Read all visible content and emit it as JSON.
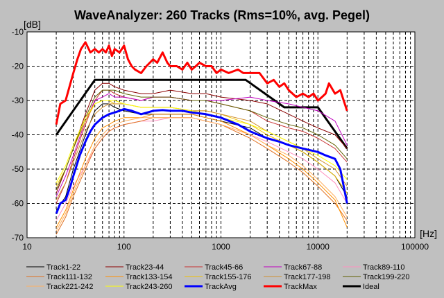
{
  "chart_data": {
    "type": "line",
    "title": "WaveAnalyzer: 260 Tracks (Rms=10%, avg. Pegel)",
    "ylabel": "[dB]",
    "xlabel": "[Hz]",
    "xscale": "log",
    "xlim": [
      10,
      100000
    ],
    "ylim": [
      -70,
      -10
    ],
    "xticks": [
      {
        "value": 10,
        "label": "10"
      },
      {
        "value": 100,
        "label": "100"
      },
      {
        "value": 1000,
        "label": "1000"
      },
      {
        "value": 10000,
        "label": "10000"
      },
      {
        "value": 100000,
        "label": "100000"
      }
    ],
    "yticks": [
      {
        "value": -10,
        "label": "-10"
      },
      {
        "value": -20,
        "label": "-20"
      },
      {
        "value": -30,
        "label": "-30"
      },
      {
        "value": -40,
        "label": "-40"
      },
      {
        "value": -50,
        "label": "-50"
      },
      {
        "value": -60,
        "label": "-60"
      },
      {
        "value": -70,
        "label": "-70"
      }
    ],
    "grid": true,
    "legend_position": "bottom",
    "series": [
      {
        "name": "Track1-22",
        "color": "#000000",
        "x": [
          20,
          25,
          30,
          40,
          50,
          60,
          70,
          80,
          100,
          150,
          200,
          300,
          500,
          700,
          1000,
          2000,
          3000,
          5000,
          7000,
          10000,
          15000,
          20000
        ],
        "y": [
          -62,
          -58,
          -50,
          -40,
          -33,
          -31,
          -31,
          -32,
          -33,
          -34,
          -34,
          -34,
          -34,
          -35,
          -36,
          -38,
          -41,
          -43,
          -45,
          -48,
          -52,
          -58
        ]
      },
      {
        "name": "Track23-44",
        "color": "#8b0000",
        "x": [
          20,
          25,
          30,
          40,
          50,
          60,
          70,
          80,
          100,
          150,
          200,
          300,
          500,
          700,
          1000,
          2000,
          3000,
          5000,
          7000,
          10000,
          15000,
          20000
        ],
        "y": [
          -57,
          -50,
          -44,
          -34,
          -27,
          -25,
          -25,
          -26,
          -27,
          -28,
          -28,
          -27,
          -28,
          -28,
          -29,
          -30,
          -31,
          -34,
          -36,
          -38,
          -40,
          -44
        ]
      },
      {
        "name": "Track45-66",
        "color": "#c83232",
        "x": [
          20,
          25,
          30,
          40,
          50,
          60,
          70,
          80,
          100,
          150,
          200,
          300,
          500,
          700,
          1000,
          2000,
          3000,
          5000,
          7000,
          10000,
          15000,
          20000
        ],
        "y": [
          -60,
          -54,
          -47,
          -37,
          -30,
          -27,
          -27,
          -28,
          -29,
          -30,
          -29,
          -29,
          -30,
          -30,
          -31,
          -33,
          -36,
          -38,
          -39,
          -41,
          -44,
          -48
        ]
      },
      {
        "name": "Track67-88",
        "color": "#c000c0",
        "x": [
          20,
          25,
          30,
          40,
          50,
          60,
          70,
          80,
          100,
          150,
          200,
          300,
          500,
          700,
          1000,
          2000,
          3000,
          5000,
          7000,
          10000,
          15000,
          20000
        ],
        "y": [
          -58,
          -52,
          -46,
          -36,
          -30,
          -29,
          -28,
          -29,
          -29,
          -30,
          -29,
          -29,
          -30,
          -30,
          -30,
          -29,
          -30,
          -31,
          -32,
          -33,
          -36,
          -43
        ]
      },
      {
        "name": "Track89-110",
        "color": "#ff90c0",
        "x": [
          20,
          25,
          30,
          40,
          50,
          60,
          70,
          80,
          100,
          150,
          200,
          300,
          500,
          700,
          1000,
          2000,
          3000,
          5000,
          7000,
          10000,
          15000,
          20000
        ],
        "y": [
          -65,
          -60,
          -55,
          -49,
          -44,
          -41,
          -39,
          -38,
          -37,
          -36,
          -36,
          -35,
          -35,
          -36,
          -37,
          -40,
          -42,
          -45,
          -47,
          -50,
          -54,
          -60
        ]
      },
      {
        "name": "Track111-132",
        "color": "#e07020",
        "x": [
          20,
          25,
          30,
          40,
          50,
          60,
          70,
          80,
          100,
          150,
          200,
          300,
          500,
          700,
          1000,
          2000,
          3000,
          5000,
          7000,
          10000,
          15000,
          20000
        ],
        "y": [
          -69,
          -64,
          -58,
          -50,
          -44,
          -41,
          -39,
          -38,
          -37,
          -36,
          -35,
          -35,
          -35,
          -36,
          -37,
          -41,
          -44,
          -48,
          -51,
          -55,
          -60,
          -65
        ]
      },
      {
        "name": "Track133-154",
        "color": "#ff9000",
        "x": [
          20,
          25,
          30,
          40,
          50,
          60,
          70,
          80,
          100,
          150,
          200,
          300,
          500,
          700,
          1000,
          2000,
          3000,
          5000,
          7000,
          10000,
          15000,
          20000
        ],
        "y": [
          -67,
          -62,
          -56,
          -47,
          -41,
          -38,
          -37,
          -36,
          -35,
          -35,
          -34,
          -34,
          -34,
          -35,
          -36,
          -40,
          -43,
          -47,
          -50,
          -54,
          -59,
          -67
        ]
      },
      {
        "name": "Track155-176",
        "color": "#f0c000",
        "x": [
          20,
          25,
          30,
          40,
          50,
          60,
          70,
          80,
          100,
          150,
          200,
          300,
          500,
          700,
          1000,
          2000,
          3000,
          5000,
          7000,
          10000,
          15000,
          20000
        ],
        "y": [
          -55,
          -50,
          -44,
          -36,
          -31,
          -30,
          -30,
          -31,
          -31,
          -32,
          -32,
          -32,
          -33,
          -33,
          -34,
          -37,
          -40,
          -43,
          -45,
          -48,
          -52,
          -57
        ]
      },
      {
        "name": "Track177-198",
        "color": "#d09030",
        "x": [
          20,
          25,
          30,
          40,
          50,
          60,
          70,
          80,
          100,
          150,
          200,
          300,
          500,
          700,
          1000,
          2000,
          3000,
          5000,
          7000,
          10000,
          15000,
          20000
        ],
        "y": [
          -59,
          -54,
          -48,
          -39,
          -34,
          -32,
          -31,
          -31,
          -31,
          -32,
          -32,
          -32,
          -33,
          -33,
          -34,
          -36,
          -39,
          -42,
          -44,
          -47,
          -50,
          -55
        ]
      },
      {
        "name": "Track199-220",
        "color": "#606000",
        "x": [
          20,
          25,
          30,
          40,
          50,
          60,
          70,
          80,
          100,
          150,
          200,
          300,
          500,
          700,
          1000,
          2000,
          3000,
          5000,
          7000,
          10000,
          15000,
          20000
        ],
        "y": [
          -56,
          -50,
          -44,
          -35,
          -29,
          -27,
          -27,
          -27,
          -28,
          -29,
          -29,
          -29,
          -30,
          -30,
          -31,
          -33,
          -35,
          -37,
          -38,
          -40,
          -43,
          -47
        ]
      },
      {
        "name": "Track221-242",
        "color": "#ffb060",
        "x": [
          20,
          25,
          30,
          40,
          50,
          60,
          70,
          80,
          100,
          150,
          200,
          300,
          500,
          700,
          1000,
          2000,
          3000,
          5000,
          7000,
          10000,
          15000,
          20000
        ],
        "y": [
          -68,
          -63,
          -57,
          -49,
          -43,
          -40,
          -38,
          -37,
          -36,
          -35,
          -35,
          -35,
          -35,
          -36,
          -37,
          -40,
          -43,
          -46,
          -49,
          -53,
          -58,
          -64
        ]
      },
      {
        "name": "Track243-260",
        "color": "#ffff00",
        "x": [
          20,
          25,
          30,
          40,
          50,
          60,
          70,
          80,
          100,
          150,
          200,
          300,
          500,
          700,
          1000,
          2000,
          3000,
          5000,
          7000,
          10000,
          15000,
          20000
        ],
        "y": [
          -54,
          -49,
          -43,
          -35,
          -31,
          -30,
          -30,
          -30,
          -31,
          -32,
          -32,
          -32,
          -33,
          -34,
          -35,
          -37,
          -39,
          -42,
          -44,
          -46,
          -49,
          -53
        ]
      },
      {
        "name": "TrackAvg",
        "color": "#0000ff",
        "x": [
          20,
          22,
          25,
          28,
          30,
          35,
          40,
          45,
          50,
          60,
          70,
          80,
          90,
          100,
          120,
          150,
          200,
          250,
          300,
          400,
          500,
          700,
          1000,
          1500,
          2000,
          3000,
          4000,
          5000,
          7000,
          10000,
          12000,
          15000,
          17000,
          20000
        ],
        "y": [
          -63,
          -60,
          -59,
          -55,
          -52,
          -46,
          -42,
          -39,
          -37,
          -35,
          -34,
          -33.5,
          -33,
          -32.5,
          -33,
          -34,
          -33,
          -32.8,
          -33,
          -33,
          -33.5,
          -34,
          -35,
          -37,
          -39,
          -41,
          -42,
          -43,
          -44,
          -45,
          -46,
          -47,
          -50,
          -60
        ]
      },
      {
        "name": "TrackMax",
        "color": "#ff0000",
        "x": [
          20,
          22,
          25,
          28,
          30,
          33,
          36,
          40,
          45,
          50,
          55,
          60,
          65,
          70,
          75,
          80,
          90,
          100,
          110,
          120,
          130,
          150,
          170,
          200,
          220,
          250,
          280,
          300,
          350,
          400,
          450,
          500,
          550,
          600,
          700,
          800,
          900,
          1000,
          1200,
          1500,
          1700,
          2000,
          2500,
          3000,
          3500,
          4000,
          4500,
          5000,
          6000,
          7000,
          8000,
          9000,
          10000,
          11000,
          12000,
          13000,
          15000,
          17000,
          20000
        ],
        "y": [
          -37,
          -31,
          -30,
          -25,
          -22,
          -18,
          -15,
          -13,
          -16,
          -15,
          -16,
          -15,
          -16,
          -14,
          -17,
          -15,
          -16,
          -14,
          -18,
          -20,
          -21,
          -22,
          -20,
          -18,
          -19,
          -16,
          -19,
          -20,
          -20,
          -21,
          -19,
          -21,
          -20,
          -19,
          -20,
          -20,
          -22,
          -21,
          -22,
          -21,
          -22,
          -22,
          -22,
          -25,
          -24,
          -26,
          -25,
          -27,
          -29,
          -28,
          -29,
          -28,
          -30,
          -29,
          -28,
          -25,
          -28,
          -27,
          -33
        ]
      },
      {
        "name": "Ideal",
        "color": "#000000",
        "x": [
          20,
          50,
          1800,
          4500,
          10000,
          20000
        ],
        "y": [
          -40,
          -24,
          -24,
          -32,
          -32,
          -44
        ]
      }
    ]
  }
}
